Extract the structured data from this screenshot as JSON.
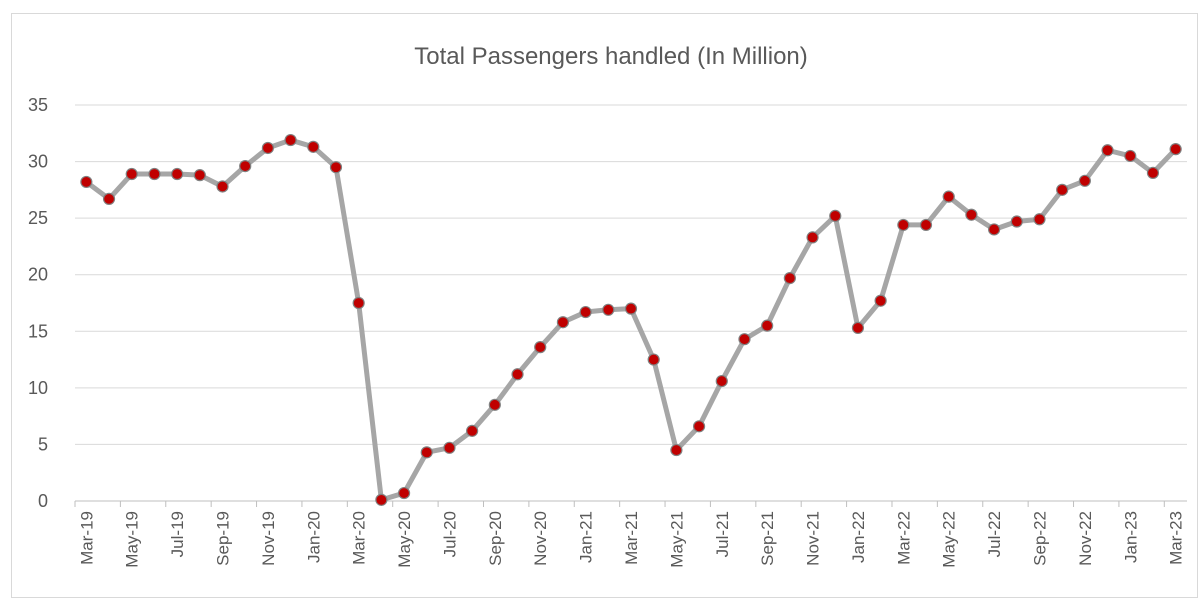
{
  "chart_data": {
    "type": "line",
    "title": "Total Passengers handled (In Million)",
    "xlabel": "",
    "ylabel": "",
    "ylim": [
      0,
      35
    ],
    "yticks": [
      0,
      5,
      10,
      15,
      20,
      25,
      30,
      35
    ],
    "grid": true,
    "legend": "none",
    "x": [
      "Mar-19",
      "Apr-19",
      "May-19",
      "Jun-19",
      "Jul-19",
      "Aug-19",
      "Sep-19",
      "Oct-19",
      "Nov-19",
      "Dec-19",
      "Jan-20",
      "Feb-20",
      "Mar-20",
      "Apr-20",
      "May-20",
      "Jun-20",
      "Jul-20",
      "Aug-20",
      "Sep-20",
      "Oct-20",
      "Nov-20",
      "Dec-20",
      "Jan-21",
      "Feb-21",
      "Mar-21",
      "Apr-21",
      "May-21",
      "Jun-21",
      "Jul-21",
      "Aug-21",
      "Sep-21",
      "Oct-21",
      "Nov-21",
      "Dec-21",
      "Jan-22",
      "Feb-22",
      "Mar-22",
      "Apr-22",
      "May-22",
      "Jun-22",
      "Jul-22",
      "Aug-22",
      "Sep-22",
      "Oct-22",
      "Nov-22",
      "Dec-22",
      "Jan-23",
      "Feb-23",
      "Mar-23"
    ],
    "xtick_labels": [
      "Mar-19",
      "May-19",
      "Jul-19",
      "Sep-19",
      "Nov-19",
      "Jan-20",
      "Mar-20",
      "May-20",
      "Jul-20",
      "Sep-20",
      "Nov-20",
      "Jan-21",
      "Mar-21",
      "May-21",
      "Jul-21",
      "Sep-21",
      "Nov-21",
      "Jan-22",
      "Mar-22",
      "May-22",
      "Jul-22",
      "Sep-22",
      "Nov-22",
      "Jan-23",
      "Mar-23"
    ],
    "series": [
      {
        "values": [
          28.2,
          26.7,
          28.9,
          28.9,
          28.9,
          28.8,
          27.8,
          29.6,
          31.2,
          31.9,
          31.3,
          29.5,
          17.5,
          0.1,
          0.7,
          4.3,
          4.7,
          6.2,
          8.5,
          11.2,
          13.6,
          15.8,
          16.7,
          16.9,
          17.0,
          12.5,
          4.5,
          6.6,
          10.6,
          14.3,
          15.5,
          19.7,
          23.3,
          25.2,
          15.3,
          17.7,
          24.4,
          24.4,
          26.9,
          25.3,
          24.0,
          24.7,
          24.9,
          27.5,
          28.3,
          31.0,
          30.5,
          29.0,
          31.1
        ]
      }
    ],
    "colors": {
      "line": "#a6a6a6",
      "marker_fill": "#c00000",
      "marker_edge": "#808080",
      "grid": "#d9d9d9",
      "axis": "#bfbfbf",
      "text": "#595959"
    }
  }
}
